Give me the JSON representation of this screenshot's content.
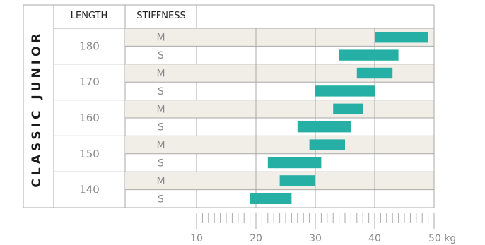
{
  "chart_data": {
    "type": "bar",
    "orientation": "horizontal-range",
    "title": "CLASSIC JUNIOR",
    "columns": [
      "LENGTH",
      "STIFFNESS"
    ],
    "unit": "kg",
    "xlim": [
      10,
      50
    ],
    "ticks": [
      10,
      20,
      30,
      40,
      50
    ],
    "groups": [
      {
        "length": "180",
        "rows": [
          {
            "stiffness": "M",
            "min": 40,
            "max": 49
          },
          {
            "stiffness": "S",
            "min": 34,
            "max": 44
          }
        ]
      },
      {
        "length": "170",
        "rows": [
          {
            "stiffness": "M",
            "min": 37,
            "max": 43
          },
          {
            "stiffness": "S",
            "min": 30,
            "max": 40
          }
        ]
      },
      {
        "length": "160",
        "rows": [
          {
            "stiffness": "M",
            "min": 33,
            "max": 38
          },
          {
            "stiffness": "S",
            "min": 27,
            "max": 36
          }
        ]
      },
      {
        "length": "150",
        "rows": [
          {
            "stiffness": "M",
            "min": 29,
            "max": 35
          },
          {
            "stiffness": "S",
            "min": 22,
            "max": 31
          }
        ]
      },
      {
        "length": "140",
        "rows": [
          {
            "stiffness": "M",
            "min": 24,
            "max": 30
          },
          {
            "stiffness": "S",
            "min": 19,
            "max": 26
          }
        ]
      }
    ],
    "colors": {
      "bar": "#26b0a5",
      "band": "#f1ede7",
      "grid": "#a9a9a9",
      "text": "#8a8a8a"
    }
  }
}
